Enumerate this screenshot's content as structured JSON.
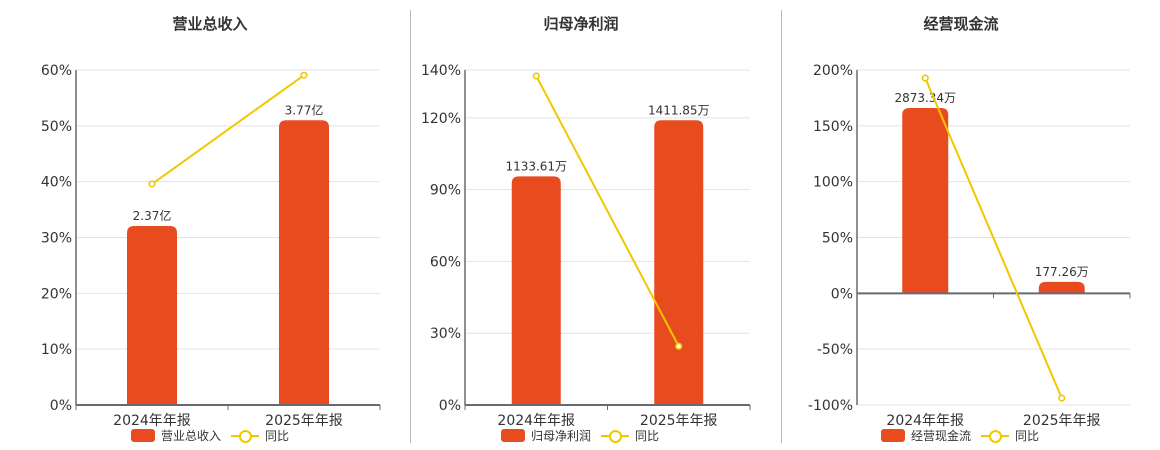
{
  "colors": {
    "bar": "#e84c1e",
    "line": "#f0c800",
    "axis": "#666a73",
    "grid": "#dfe3ea"
  },
  "charts": [
    {
      "title": "营业总收入",
      "legend": {
        "bar": "营业总收入",
        "line": "同比"
      },
      "categories": [
        "2024年年报",
        "2025年年报"
      ],
      "bar_labels": [
        "2.37亿",
        "3.77亿"
      ],
      "yoy_labels": [
        "39.58%",
        "59.07%"
      ],
      "y_ticks": [
        "0%",
        "10%",
        "20%",
        "30%",
        "40%",
        "50%",
        "60%"
      ]
    },
    {
      "title": "归母净利润",
      "legend": {
        "bar": "归母净利润",
        "line": "同比"
      },
      "categories": [
        "2024年年报",
        "2025年年报"
      ],
      "bar_labels": [
        "1133.61万",
        "1411.85万"
      ],
      "yoy_labels": [
        "137.5%",
        "24.54%"
      ],
      "y_ticks": [
        "0%",
        "30%",
        "60%",
        "90%",
        "120%",
        "140%"
      ]
    },
    {
      "title": "经营现金流",
      "legend": {
        "bar": "经营现金流",
        "line": "同比"
      },
      "categories": [
        "2024年年报",
        "2025年年报"
      ],
      "bar_labels": [
        "2873.34万",
        "177.26万"
      ],
      "yoy_labels": [
        "192.8%",
        "-93.83%"
      ],
      "y_ticks": [
        "-100%",
        "-50%",
        "0%",
        "50%",
        "100%",
        "150%",
        "200%"
      ]
    }
  ],
  "chart_data": [
    {
      "type": "bar+line",
      "title": "营业总收入",
      "categories": [
        "2024年年报",
        "2025年年报"
      ],
      "series": [
        {
          "name": "营业总收入",
          "type": "bar",
          "values": [
            2.37,
            3.77
          ],
          "unit": "亿",
          "labels": [
            "2.37亿",
            "3.77亿"
          ]
        },
        {
          "name": "同比",
          "type": "line",
          "values": [
            39.58,
            59.07
          ],
          "unit": "%"
        }
      ],
      "ylabel": "",
      "xlabel": "",
      "ylim": [
        0,
        60
      ],
      "yticks": [
        0,
        10,
        20,
        30,
        40,
        50,
        60
      ],
      "grid": true,
      "legend_position": "bottom"
    },
    {
      "type": "bar+line",
      "title": "归母净利润",
      "categories": [
        "2024年年报",
        "2025年年报"
      ],
      "series": [
        {
          "name": "归母净利润",
          "type": "bar",
          "values": [
            1133.61,
            1411.85
          ],
          "unit": "万",
          "labels": [
            "1133.61万",
            "1411.85万"
          ]
        },
        {
          "name": "同比",
          "type": "line",
          "values": [
            137.5,
            24.54
          ],
          "unit": "%"
        }
      ],
      "ylabel": "",
      "xlabel": "",
      "ylim": [
        0,
        140
      ],
      "yticks": [
        0,
        30,
        60,
        90,
        120,
        140
      ],
      "grid": true,
      "legend_position": "bottom"
    },
    {
      "type": "bar+line",
      "title": "经营现金流",
      "categories": [
        "2024年年报",
        "2025年年报"
      ],
      "series": [
        {
          "name": "经营现金流",
          "type": "bar",
          "values": [
            2873.34,
            177.26
          ],
          "unit": "万",
          "labels": [
            "2873.34万",
            "177.26万"
          ]
        },
        {
          "name": "同比",
          "type": "line",
          "values": [
            192.8,
            -93.83
          ],
          "unit": "%"
        }
      ],
      "ylabel": "",
      "xlabel": "",
      "ylim": [
        -100,
        200
      ],
      "yticks": [
        -100,
        -50,
        0,
        50,
        100,
        150,
        200
      ],
      "grid": true,
      "legend_position": "bottom"
    }
  ]
}
